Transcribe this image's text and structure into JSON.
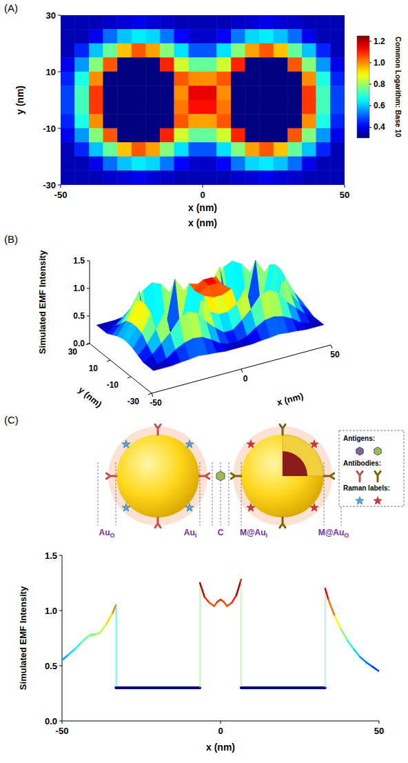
{
  "chart_data": [
    {
      "type": "heatmap",
      "panel_label": "(A)",
      "x_label": "x (nm)",
      "y_label": "y (nm)",
      "annotations": [
        "x (nm)"
      ],
      "xlim": [
        -50,
        50
      ],
      "ylim": [
        -30,
        30
      ],
      "xticks": [
        -50,
        0,
        50
      ],
      "yticks": [
        -30,
        -10,
        10,
        30
      ],
      "color_label": "Common Logarithm: Base 10",
      "color_range": [
        0.3,
        1.25
      ],
      "color_ticks": [
        0.4,
        0.6,
        0.8,
        {
          "value": 1,
          "label": "1.0"
        },
        1.2
      ],
      "x": [
        -47.5,
        -42.5,
        -37.5,
        -32.5,
        -27.5,
        -22.5,
        -17.5,
        -12.5,
        -7.5,
        -2.5,
        2.5,
        7.5,
        12.5,
        17.5,
        22.5,
        27.5,
        32.5,
        37.5,
        42.5,
        47.5
      ],
      "y": [
        27.5,
        22.5,
        17.5,
        12.5,
        7.5,
        2.5,
        -2.5,
        -7.5,
        -12.5,
        -17.5,
        -22.5,
        -27.5
      ],
      "cells": [
        [
          0.35,
          0.35,
          0.35,
          0.37,
          0.38,
          0.4,
          0.38,
          0.37,
          0.35,
          0.35,
          0.35,
          0.35,
          0.37,
          0.38,
          0.4,
          0.38,
          0.37,
          0.35,
          0.35,
          0.35
        ],
        [
          0.35,
          0.35,
          0.4,
          0.52,
          0.6,
          0.64,
          0.62,
          0.53,
          0.42,
          0.37,
          0.37,
          0.42,
          0.53,
          0.62,
          0.64,
          0.6,
          0.52,
          0.4,
          0.35,
          0.35
        ],
        [
          0.35,
          0.45,
          0.6,
          0.75,
          0.95,
          1.05,
          0.98,
          0.78,
          0.63,
          0.5,
          0.5,
          0.63,
          0.78,
          0.98,
          1.05,
          0.95,
          0.75,
          0.6,
          0.45,
          0.35
        ],
        [
          0.4,
          0.56,
          0.78,
          1.05,
          0.3,
          0.3,
          0.3,
          1.1,
          0.85,
          0.75,
          0.75,
          0.85,
          1.1,
          0.3,
          0.3,
          0.3,
          1.05,
          0.78,
          0.56,
          0.4
        ],
        [
          0.45,
          0.68,
          1.0,
          0.3,
          0.3,
          0.3,
          0.3,
          0.3,
          1.05,
          1.0,
          1.0,
          1.05,
          0.3,
          0.3,
          0.3,
          0.3,
          0.3,
          1.0,
          0.68,
          0.45
        ],
        [
          0.48,
          0.72,
          1.08,
          0.3,
          0.3,
          0.3,
          0.3,
          0.3,
          1.0,
          1.15,
          1.15,
          1.0,
          0.3,
          0.3,
          0.3,
          0.3,
          0.3,
          1.08,
          0.72,
          0.48
        ],
        [
          0.48,
          0.72,
          1.08,
          0.3,
          0.3,
          0.3,
          0.3,
          0.3,
          1.02,
          1.12,
          1.12,
          1.02,
          0.3,
          0.3,
          0.3,
          0.3,
          0.3,
          1.08,
          0.72,
          0.48
        ],
        [
          0.45,
          0.68,
          1.0,
          0.3,
          0.3,
          0.3,
          0.3,
          0.3,
          1.05,
          0.98,
          0.98,
          1.05,
          0.3,
          0.3,
          0.3,
          0.3,
          0.3,
          1.0,
          0.68,
          0.45
        ],
        [
          0.4,
          0.56,
          0.78,
          1.05,
          0.3,
          0.3,
          0.3,
          1.1,
          0.85,
          0.75,
          0.75,
          0.85,
          1.1,
          0.3,
          0.3,
          0.3,
          1.05,
          0.78,
          0.56,
          0.4
        ],
        [
          0.35,
          0.45,
          0.6,
          0.75,
          0.95,
          1.05,
          0.98,
          0.78,
          0.63,
          0.5,
          0.5,
          0.63,
          0.78,
          0.98,
          1.05,
          0.95,
          0.75,
          0.6,
          0.45,
          0.35
        ],
        [
          0.35,
          0.35,
          0.4,
          0.52,
          0.6,
          0.64,
          0.62,
          0.53,
          0.42,
          0.37,
          0.37,
          0.42,
          0.53,
          0.62,
          0.64,
          0.6,
          0.52,
          0.4,
          0.35,
          0.35
        ],
        [
          0.35,
          0.35,
          0.35,
          0.37,
          0.38,
          0.4,
          0.38,
          0.37,
          0.35,
          0.35,
          0.35,
          0.35,
          0.37,
          0.38,
          0.4,
          0.38,
          0.37,
          0.35,
          0.35,
          0.35
        ]
      ]
    },
    {
      "type": "surface",
      "panel_label": "(B)",
      "x_label": "x (nm)",
      "y_label": "y (nm)",
      "z_label": "Simulated EMF Intensity",
      "xlim": [
        -50,
        50
      ],
      "ylim": [
        -30,
        30
      ],
      "zlim": [
        0,
        1.5
      ],
      "xticks": [
        -50,
        0,
        50
      ],
      "yticks": [
        -30,
        -10,
        10,
        30
      ],
      "zticks": [
        {
          "value": 0,
          "label": "0.0"
        },
        0.5,
        {
          "value": 1,
          "label": "1.0"
        },
        1.5
      ],
      "x": [
        -47.5,
        -42.5,
        -37.5,
        -32.5,
        -27.5,
        -22.5,
        -17.5,
        -12.5,
        -7.5,
        -2.5,
        2.5,
        7.5,
        12.5,
        17.5,
        22.5,
        27.5,
        32.5,
        37.5,
        42.5,
        47.5
      ],
      "y": [
        27.5,
        22.5,
        17.5,
        12.5,
        7.5,
        2.5,
        -2.5,
        -7.5,
        -12.5,
        -17.5,
        -22.5,
        -27.5
      ],
      "z": [
        [
          0.35,
          0.35,
          0.35,
          0.37,
          0.38,
          0.4,
          0.38,
          0.37,
          0.35,
          0.35,
          0.35,
          0.35,
          0.37,
          0.38,
          0.4,
          0.38,
          0.37,
          0.35,
          0.35,
          0.35
        ],
        [
          0.35,
          0.35,
          0.4,
          0.52,
          0.6,
          0.64,
          0.62,
          0.53,
          0.42,
          0.37,
          0.37,
          0.42,
          0.53,
          0.62,
          0.64,
          0.6,
          0.52,
          0.4,
          0.35,
          0.35
        ],
        [
          0.35,
          0.45,
          0.6,
          0.75,
          0.95,
          1.05,
          0.98,
          0.78,
          0.63,
          0.5,
          0.5,
          0.63,
          0.78,
          0.98,
          1.05,
          0.95,
          0.75,
          0.6,
          0.45,
          0.35
        ],
        [
          0.4,
          0.56,
          0.78,
          1.05,
          0.3,
          0.3,
          0.3,
          1.1,
          0.85,
          0.75,
          0.75,
          0.85,
          1.1,
          0.3,
          0.3,
          0.3,
          1.05,
          0.78,
          0.56,
          0.4
        ],
        [
          0.45,
          0.68,
          1.0,
          0.3,
          0.3,
          0.3,
          0.3,
          0.3,
          1.05,
          1.0,
          1.0,
          1.05,
          0.3,
          0.3,
          0.3,
          0.3,
          0.3,
          1.0,
          0.68,
          0.45
        ],
        [
          0.48,
          0.72,
          1.08,
          0.3,
          0.3,
          0.3,
          0.3,
          0.3,
          1.0,
          1.15,
          1.15,
          1.0,
          0.3,
          0.3,
          0.3,
          0.3,
          0.3,
          1.08,
          0.72,
          0.48
        ],
        [
          0.48,
          0.72,
          1.08,
          0.3,
          0.3,
          0.3,
          0.3,
          0.3,
          1.02,
          1.12,
          1.12,
          1.02,
          0.3,
          0.3,
          0.3,
          0.3,
          0.3,
          1.08,
          0.72,
          0.48
        ],
        [
          0.45,
          0.68,
          1.0,
          0.3,
          0.3,
          0.3,
          0.3,
          0.3,
          1.05,
          0.98,
          0.98,
          1.05,
          0.3,
          0.3,
          0.3,
          0.3,
          0.3,
          1.0,
          0.68,
          0.45
        ],
        [
          0.4,
          0.56,
          0.78,
          1.05,
          0.3,
          0.3,
          0.3,
          1.1,
          0.85,
          0.75,
          0.75,
          0.85,
          1.1,
          0.3,
          0.3,
          0.3,
          1.05,
          0.78,
          0.56,
          0.4
        ],
        [
          0.35,
          0.45,
          0.6,
          0.75,
          0.95,
          1.05,
          0.98,
          0.78,
          0.63,
          0.5,
          0.5,
          0.63,
          0.78,
          0.98,
          1.05,
          0.95,
          0.75,
          0.6,
          0.45,
          0.35
        ],
        [
          0.35,
          0.35,
          0.4,
          0.52,
          0.6,
          0.64,
          0.62,
          0.53,
          0.42,
          0.37,
          0.37,
          0.42,
          0.53,
          0.62,
          0.64,
          0.6,
          0.52,
          0.4,
          0.35,
          0.35
        ],
        [
          0.35,
          0.35,
          0.35,
          0.37,
          0.38,
          0.4,
          0.38,
          0.37,
          0.35,
          0.35,
          0.35,
          0.35,
          0.37,
          0.38,
          0.4,
          0.38,
          0.37,
          0.35,
          0.35,
          0.35
        ]
      ]
    },
    {
      "type": "line",
      "panel_label": "(C)",
      "x_label": "x (nm)",
      "y_label": "Simulated EMF Intensity",
      "xlim": [
        -50,
        50
      ],
      "ylim": [
        0,
        1.5
      ],
      "xticks": [
        -50,
        0,
        50
      ],
      "yticks": [
        {
          "value": 0,
          "label": "0.0"
        },
        0.5,
        {
          "value": 1,
          "label": "1.0"
        },
        1.5
      ],
      "x": [
        -50,
        -48,
        -46,
        -44,
        -42,
        -41,
        -40,
        -38,
        -36,
        -34,
        -33,
        -33,
        -6.5,
        -6.5,
        -5,
        -3.5,
        -2,
        -1,
        0,
        1,
        2,
        3.5,
        5,
        6.5,
        6.5,
        33,
        33,
        34,
        36,
        38,
        40,
        42,
        44,
        46,
        48,
        50
      ],
      "values": [
        0.55,
        0.6,
        0.65,
        0.71,
        0.76,
        0.78,
        0.78,
        0.8,
        0.88,
        0.98,
        1.05,
        0.3,
        0.3,
        1.25,
        1.12,
        1.07,
        1.04,
        1.08,
        1.1,
        1.08,
        1.04,
        1.07,
        1.14,
        1.28,
        0.3,
        0.3,
        1.2,
        1.1,
        0.95,
        0.83,
        0.73,
        0.65,
        0.58,
        0.53,
        0.49,
        0.45
      ],
      "diagram": {
        "position_labels": [
          {
            "text": "Au",
            "sub": "O"
          },
          {
            "text": "Au",
            "sub": "I"
          },
          {
            "text": "C"
          },
          {
            "text": "M@Au",
            "sub": "I"
          },
          {
            "text": "M@Au",
            "sub": "O"
          }
        ],
        "key": [
          "Antigens:",
          "Antibodies:",
          "Raman labels:"
        ]
      }
    }
  ]
}
